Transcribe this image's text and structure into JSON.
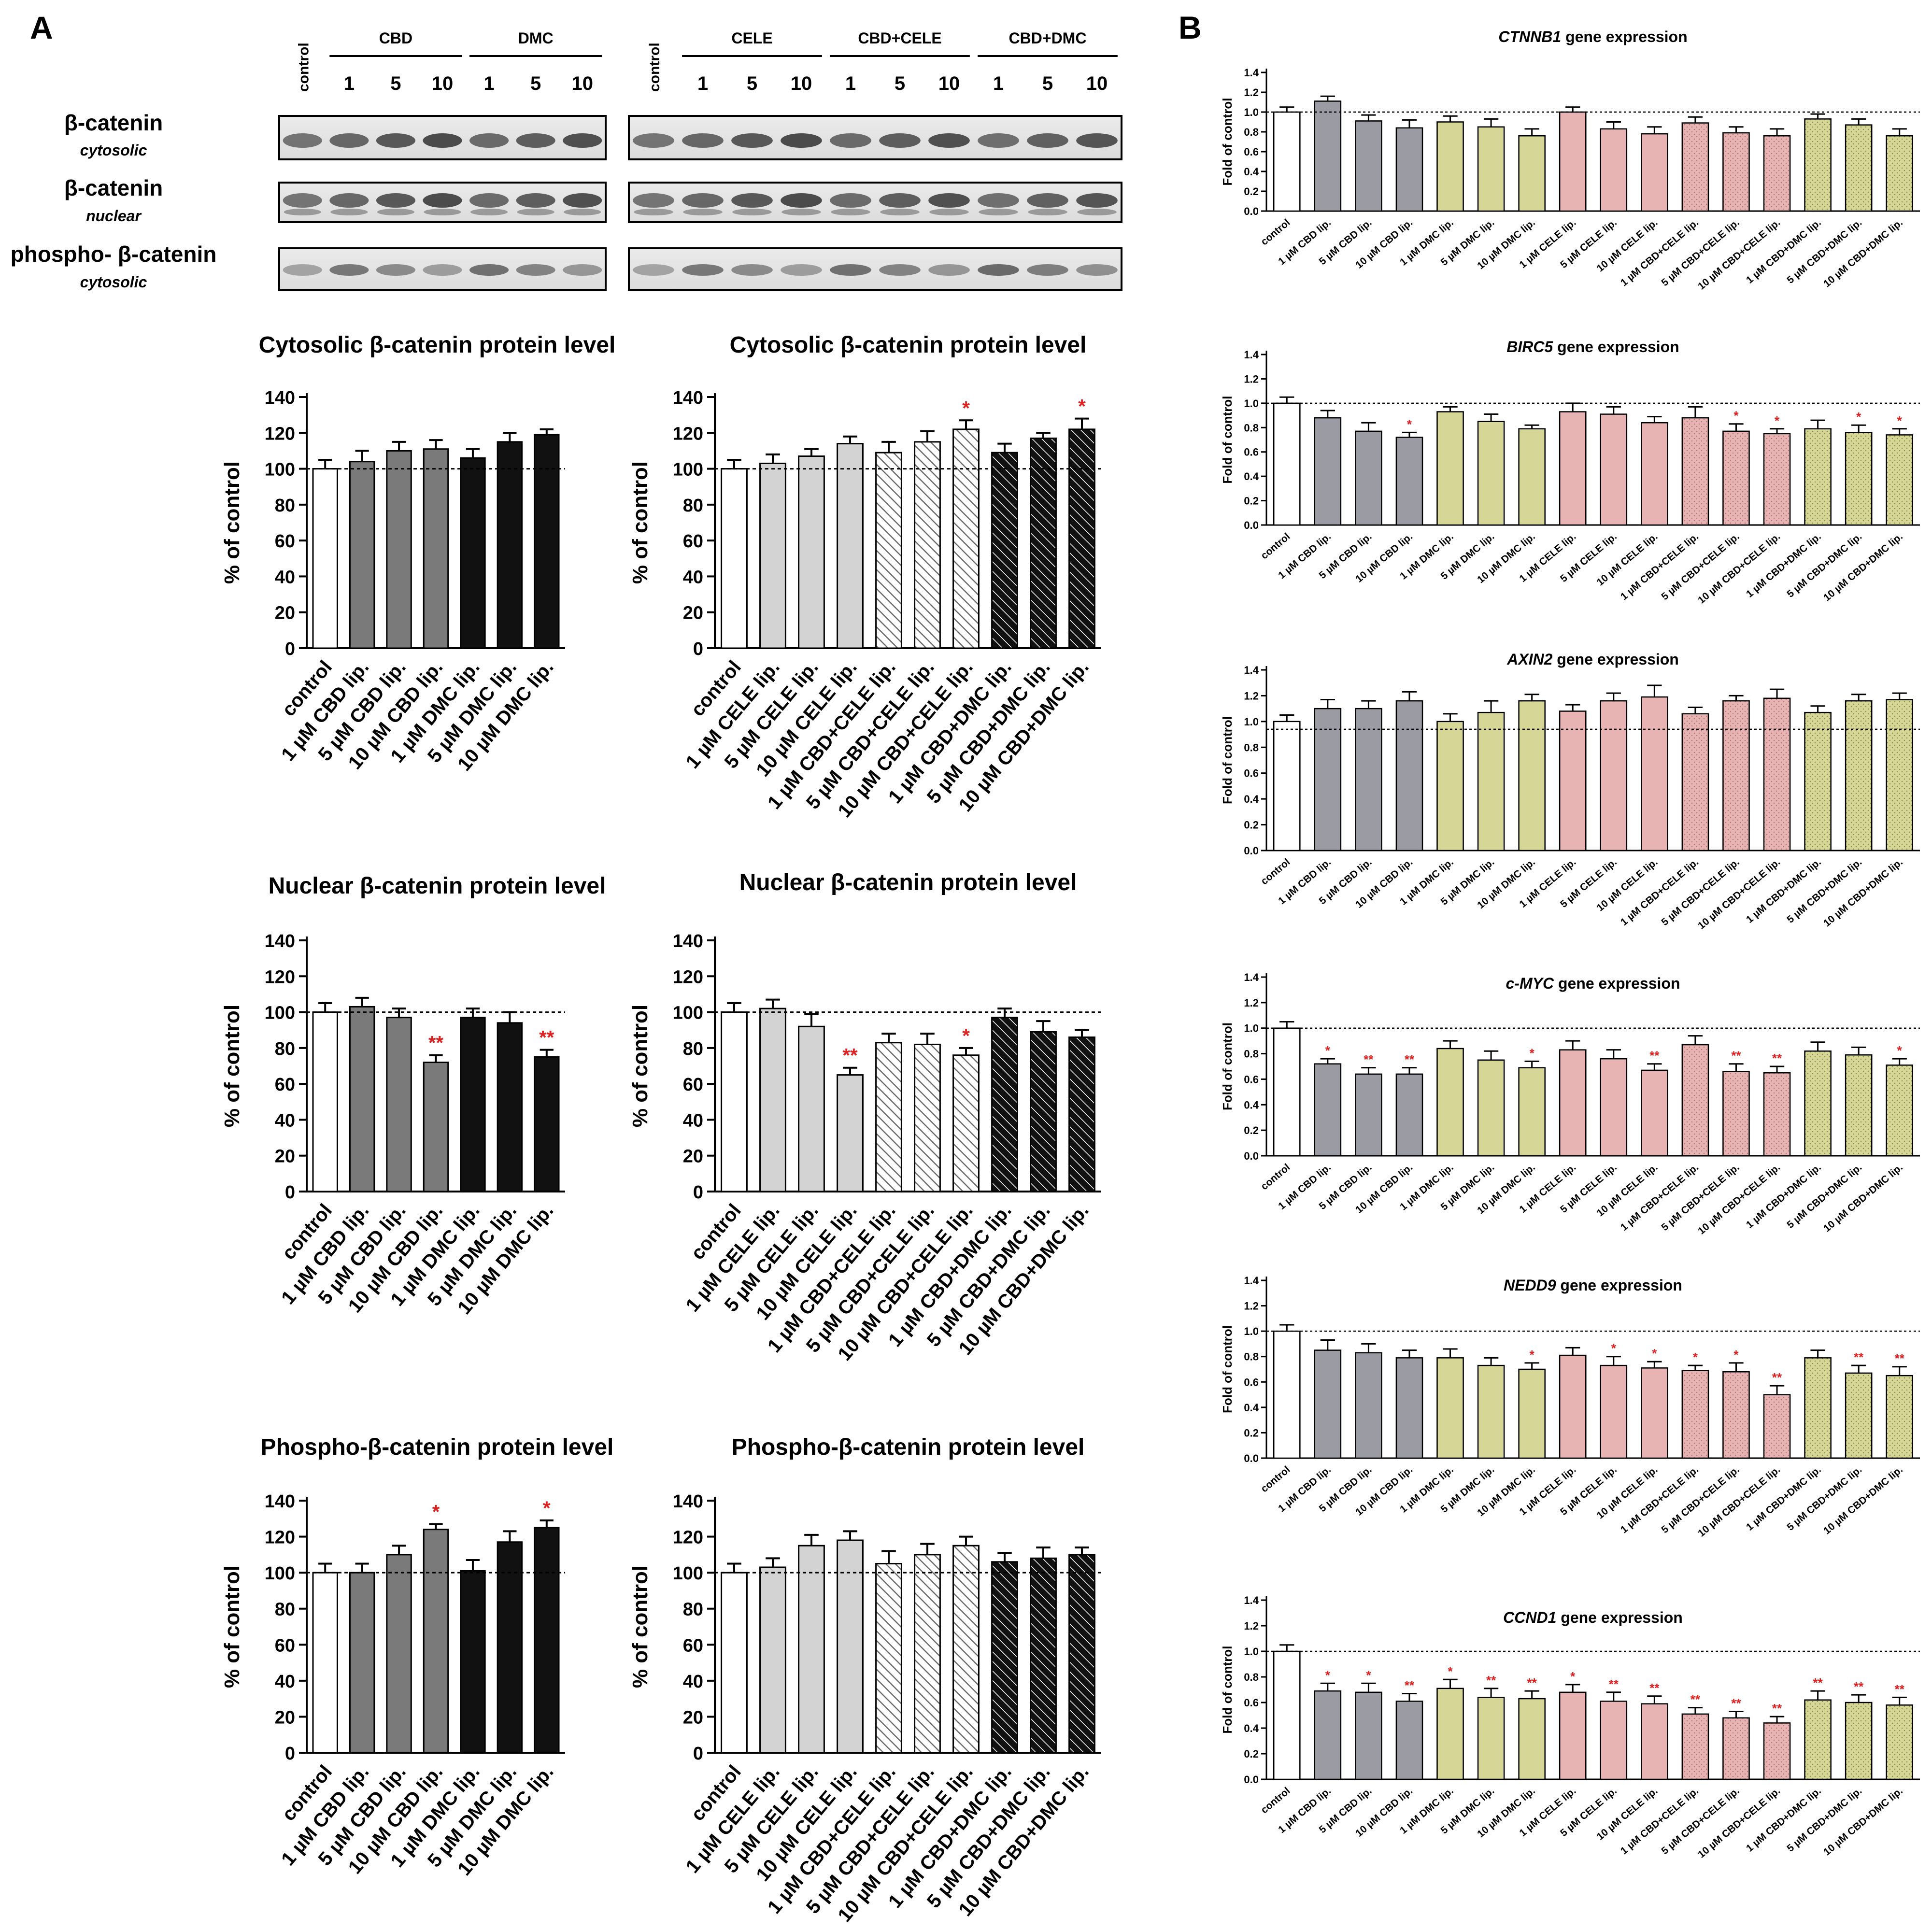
{
  "panels": {
    "a": "A",
    "b": "B"
  },
  "blot": {
    "left_block": {
      "control": "control",
      "groups": [
        {
          "label": "CBD",
          "doses": [
            "1",
            "5",
            "10"
          ]
        },
        {
          "label": "DMC",
          "doses": [
            "1",
            "5",
            "10"
          ]
        }
      ]
    },
    "right_block": {
      "control": "control",
      "groups": [
        {
          "label": "CELE",
          "doses": [
            "1",
            "5",
            "10"
          ]
        },
        {
          "label": "CBD+CELE",
          "doses": [
            "1",
            "5",
            "10"
          ]
        },
        {
          "label": "CBD+DMC",
          "doses": [
            "1",
            "5",
            "10"
          ]
        }
      ]
    },
    "rows": [
      {
        "name": "β-catenin",
        "sub": "cytosolic"
      },
      {
        "name": "β-catenin",
        "sub": "nuclear"
      },
      {
        "name": "phospho- β-catenin",
        "sub": "cytosolic"
      }
    ]
  },
  "colors": {
    "white": "#ffffff",
    "dark_gray": "#7a7a7a",
    "black": "#111111",
    "light_gray": "#d3d3d3",
    "gene_gray": "#9b9ba3",
    "gene_olive": "#d6d697",
    "gene_pink": "#e8b3b3",
    "star_red": "#e02020"
  },
  "chart_data": [
    {
      "type": "bar",
      "title": "Cytosolic β-catenin protein level",
      "ylabel": "% of control",
      "ylim": [
        0,
        140
      ],
      "yticks": [
        "0",
        "20",
        "40",
        "60",
        "80",
        "100",
        "120",
        "140"
      ],
      "reference_line": 100,
      "categories": [
        "control",
        "1 µM CBD lip.",
        "5 µM CBD lip.",
        "10 µM CBD lip.",
        "1 µM DMC lip.",
        "5 µM DMC lip.",
        "10 µM DMC lip."
      ],
      "values": [
        100,
        104,
        110,
        111,
        106,
        115,
        119
      ],
      "errors": [
        5,
        6,
        5,
        5,
        5,
        5,
        3
      ],
      "significance": [
        "",
        "",
        "",
        "",
        "",
        "",
        ""
      ],
      "fills": [
        "white",
        "dark_gray",
        "dark_gray",
        "dark_gray",
        "black",
        "black",
        "black"
      ]
    },
    {
      "type": "bar",
      "title": "Cytosolic β-catenin protein level",
      "ylabel": "% of control",
      "ylim": [
        0,
        140
      ],
      "yticks": [
        "0",
        "20",
        "40",
        "60",
        "80",
        "100",
        "120",
        "140"
      ],
      "reference_line": 100,
      "categories": [
        "control",
        "1 µM CELE lip.",
        "5 µM CELE lip.",
        "10 µM CELE lip.",
        "1 µM CBD+CELE lip.",
        "5 µM CBD+CELE lip.",
        "10 µM CBD+CELE lip.",
        "1 µM CBD+DMC lip.",
        "5 µM CBD+DMC lip.",
        "10 µM CBD+DMC lip."
      ],
      "values": [
        100,
        103,
        107,
        114,
        109,
        115,
        122,
        109,
        117,
        122
      ],
      "errors": [
        5,
        5,
        4,
        4,
        6,
        6,
        5,
        5,
        3,
        6
      ],
      "significance": [
        "",
        "",
        "",
        "",
        "",
        "",
        "*",
        "",
        "",
        "*"
      ],
      "fills": [
        "white",
        "light_gray",
        "light_gray",
        "light_gray",
        "hatch_light",
        "hatch_light",
        "hatch_light",
        "hatch_dark",
        "hatch_dark",
        "hatch_dark"
      ]
    },
    {
      "type": "bar",
      "title": "Nuclear β-catenin protein level",
      "ylabel": "% of control",
      "ylim": [
        0,
        140
      ],
      "yticks": [
        "0",
        "20",
        "40",
        "60",
        "80",
        "100",
        "120",
        "140"
      ],
      "reference_line": 100,
      "categories": [
        "control",
        "1 µM CBD lip.",
        "5 µM CBD lip.",
        "10 µM CBD lip.",
        "1 µM DMC lip.",
        "5 µM DMC lip.",
        "10 µM DMC lip."
      ],
      "values": [
        100,
        103,
        97,
        72,
        97,
        94,
        75
      ],
      "errors": [
        5,
        5,
        5,
        4,
        5,
        6,
        4
      ],
      "significance": [
        "",
        "",
        "",
        "**",
        "",
        "",
        "**"
      ],
      "fills": [
        "white",
        "dark_gray",
        "dark_gray",
        "dark_gray",
        "black",
        "black",
        "black"
      ]
    },
    {
      "type": "bar",
      "title": "Nuclear β-catenin protein level",
      "ylabel": "% of control",
      "ylim": [
        0,
        140
      ],
      "yticks": [
        "0",
        "20",
        "40",
        "60",
        "80",
        "100",
        "120",
        "140"
      ],
      "reference_line": 100,
      "categories": [
        "control",
        "1 µM CELE lip.",
        "5 µM CELE lip.",
        "10 µM CELE lip.",
        "1 µM CBD+CELE lip.",
        "5 µM CBD+CELE lip.",
        "10 µM CBD+CELE lip.",
        "1 µM CBD+DMC lip.",
        "5 µM CBD+DMC lip.",
        "10 µM CBD+DMC lip."
      ],
      "values": [
        100,
        102,
        92,
        65,
        83,
        82,
        76,
        97,
        89,
        86
      ],
      "errors": [
        5,
        5,
        7,
        4,
        5,
        6,
        4,
        5,
        6,
        4
      ],
      "significance": [
        "",
        "",
        "",
        "**",
        "",
        "",
        "*",
        "",
        "",
        ""
      ],
      "fills": [
        "white",
        "light_gray",
        "light_gray",
        "light_gray",
        "hatch_light",
        "hatch_light",
        "hatch_light",
        "hatch_dark",
        "hatch_dark",
        "hatch_dark"
      ]
    },
    {
      "type": "bar",
      "title": "Phospho-β-catenin protein level",
      "ylabel": "% of control",
      "ylim": [
        0,
        140
      ],
      "yticks": [
        "0",
        "20",
        "40",
        "60",
        "80",
        "100",
        "120",
        "140"
      ],
      "reference_line": 100,
      "categories": [
        "control",
        "1 µM CBD lip.",
        "5 µM CBD lip.",
        "10 µM CBD lip.",
        "1 µM DMC lip.",
        "5 µM DMC lip.",
        "10 µM DMC lip."
      ],
      "values": [
        100,
        100,
        110,
        124,
        101,
        117,
        125
      ],
      "errors": [
        5,
        5,
        5,
        3,
        6,
        6,
        4
      ],
      "significance": [
        "",
        "",
        "",
        "*",
        "",
        "",
        "*"
      ],
      "fills": [
        "white",
        "dark_gray",
        "dark_gray",
        "dark_gray",
        "black",
        "black",
        "black"
      ]
    },
    {
      "type": "bar",
      "title": "Phospho-β-catenin protein level",
      "ylabel": "% of control",
      "ylim": [
        0,
        140
      ],
      "yticks": [
        "0",
        "20",
        "40",
        "60",
        "80",
        "100",
        "120",
        "140"
      ],
      "reference_line": 100,
      "categories": [
        "control",
        "1 µM CELE lip.",
        "5 µM CELE lip.",
        "10 µM CELE lip.",
        "1 µM CBD+CELE lip.",
        "5 µM CBD+CELE lip.",
        "10 µM CBD+CELE lip.",
        "1 µM CBD+DMC lip.",
        "5 µM CBD+DMC lip.",
        "10 µM CBD+DMC lip."
      ],
      "values": [
        100,
        103,
        115,
        118,
        105,
        110,
        115,
        106,
        108,
        110
      ],
      "errors": [
        5,
        5,
        6,
        5,
        7,
        6,
        5,
        5,
        6,
        4
      ],
      "significance": [
        "",
        "",
        "",
        "",
        "",
        "",
        "",
        "",
        "",
        ""
      ],
      "fills": [
        "white",
        "light_gray",
        "light_gray",
        "light_gray",
        "hatch_light",
        "hatch_light",
        "hatch_light",
        "hatch_dark",
        "hatch_dark",
        "hatch_dark"
      ]
    },
    {
      "type": "bar",
      "title_italic": "CTNNB1",
      "title_rest": " gene expression",
      "ylabel": "Fold of control",
      "ylim": [
        0,
        1.4
      ],
      "yticks": [
        "0.0",
        "0.2",
        "0.4",
        "0.6",
        "0.8",
        "1.0",
        "1.2",
        "1.4"
      ],
      "reference_line": 1.0,
      "categories": [
        "control",
        "1 µM CBD lip.",
        "5 µM CBD lip.",
        "10 µM CBD lip.",
        "1 µM DMC lip.",
        "5 µM DMC lip.",
        "10 µM DMC lip.",
        "1 µM CELE lip.",
        "5 µM CELE lip.",
        "10 µM CELE lip.",
        "1 µM CBD+CELE lip.",
        "5 µM CBD+CELE lip.",
        "10 µM CBD+CELE lip.",
        "1 µM CBD+DMC lip.",
        "5 µM CBD+DMC lip.",
        "10 µM CBD+DMC lip."
      ],
      "values": [
        1.0,
        1.11,
        0.91,
        0.84,
        0.9,
        0.85,
        0.76,
        1.0,
        0.83,
        0.78,
        0.89,
        0.79,
        0.76,
        0.93,
        0.87,
        0.76
      ],
      "errors": [
        0.05,
        0.05,
        0.06,
        0.08,
        0.06,
        0.08,
        0.07,
        0.05,
        0.07,
        0.07,
        0.06,
        0.06,
        0.07,
        0.05,
        0.06,
        0.07
      ],
      "significance": [
        "",
        "",
        "",
        "",
        "",
        "",
        "",
        "",
        "",
        "",
        "",
        "",
        "",
        "",
        "",
        ""
      ]
    },
    {
      "type": "bar",
      "title_italic": "BIRC5",
      "title_rest": " gene expression",
      "ylabel": "Fold of control",
      "ylim": [
        0,
        1.4
      ],
      "yticks": [
        "0.0",
        "0.2",
        "0.4",
        "0.6",
        "0.8",
        "1.0",
        "1.2",
        "1.4"
      ],
      "reference_line": 1.0,
      "categories": [
        "control",
        "1 µM CBD lip.",
        "5 µM CBD lip.",
        "10 µM CBD lip.",
        "1 µM DMC lip.",
        "5 µM DMC lip.",
        "10 µM DMC lip.",
        "1 µM CELE lip.",
        "5 µM CELE lip.",
        "10 µM CELE lip.",
        "1 µM CBD+CELE lip.",
        "5 µM CBD+CELE lip.",
        "10 µM CBD+CELE lip.",
        "1 µM CBD+DMC lip.",
        "5 µM CBD+DMC lip.",
        "10 µM CBD+DMC lip."
      ],
      "values": [
        1.0,
        0.88,
        0.77,
        0.72,
        0.93,
        0.85,
        0.79,
        0.93,
        0.91,
        0.84,
        0.88,
        0.77,
        0.75,
        0.79,
        0.76,
        0.74
      ],
      "errors": [
        0.05,
        0.06,
        0.07,
        0.04,
        0.04,
        0.06,
        0.03,
        0.07,
        0.06,
        0.05,
        0.09,
        0.06,
        0.04,
        0.07,
        0.06,
        0.05
      ],
      "significance": [
        "",
        "",
        "",
        "*",
        "",
        "",
        "",
        "",
        "",
        "",
        "",
        "*",
        "*",
        "",
        "*",
        "*"
      ]
    },
    {
      "type": "bar",
      "title_italic": "AXIN2",
      "title_rest": " gene expression",
      "ylabel": "Fold of control",
      "ylim": [
        0,
        1.4
      ],
      "yticks": [
        "0.0",
        "0.2",
        "0.4",
        "0.6",
        "0.8",
        "1.0",
        "1.2",
        "1.4"
      ],
      "reference_line": 0.94,
      "categories": [
        "control",
        "1 µM CBD lip.",
        "5 µM CBD lip.",
        "10 µM CBD lip.",
        "1 µM DMC lip.",
        "5 µM DMC lip.",
        "10 µM DMC lip.",
        "1 µM CELE lip.",
        "5 µM CELE lip.",
        "10 µM CELE lip.",
        "1 µM CBD+CELE lip.",
        "5 µM CBD+CELE lip.",
        "10 µM CBD+CELE lip.",
        "1 µM CBD+DMC lip.",
        "5 µM CBD+DMC lip.",
        "10 µM CBD+DMC lip."
      ],
      "values": [
        1.0,
        1.1,
        1.1,
        1.16,
        1.0,
        1.07,
        1.16,
        1.08,
        1.16,
        1.19,
        1.06,
        1.16,
        1.18,
        1.07,
        1.16,
        1.17
      ],
      "errors": [
        0.05,
        0.07,
        0.06,
        0.07,
        0.06,
        0.09,
        0.05,
        0.05,
        0.06,
        0.09,
        0.05,
        0.04,
        0.07,
        0.05,
        0.05,
        0.05
      ],
      "significance": [
        "",
        "",
        "",
        "",
        "",
        "",
        "",
        "",
        "",
        "",
        "",
        "",
        "",
        "",
        "",
        ""
      ]
    },
    {
      "type": "bar",
      "title_italic": "c-MYC",
      "title_rest": " gene expression",
      "ylabel": "Fold of control",
      "ylim": [
        0,
        1.4
      ],
      "yticks": [
        "0.0",
        "0.2",
        "0.4",
        "0.6",
        "0.8",
        "1.0",
        "1.2",
        "1.4"
      ],
      "reference_line": 1.0,
      "categories": [
        "control",
        "1 µM CBD lip.",
        "5 µM CBD lip.",
        "10 µM CBD lip.",
        "1 µM DMC lip.",
        "5 µM DMC lip.",
        "10 µM DMC lip.",
        "1 µM CELE lip.",
        "5 µM CELE lip.",
        "10 µM CELE lip.",
        "1 µM CBD+CELE lip.",
        "5 µM CBD+CELE lip.",
        "10 µM CBD+CELE lip.",
        "1 µM CBD+DMC lip.",
        "5 µM CBD+DMC lip.",
        "10 µM CBD+DMC lip."
      ],
      "values": [
        1.0,
        0.72,
        0.64,
        0.64,
        0.84,
        0.75,
        0.69,
        0.83,
        0.76,
        0.67,
        0.87,
        0.66,
        0.65,
        0.82,
        0.79,
        0.71
      ],
      "errors": [
        0.05,
        0.04,
        0.05,
        0.05,
        0.06,
        0.07,
        0.05,
        0.07,
        0.07,
        0.05,
        0.07,
        0.06,
        0.05,
        0.07,
        0.06,
        0.05
      ],
      "significance": [
        "",
        "*",
        "**",
        "**",
        "",
        "",
        "*",
        "",
        "",
        "**",
        "",
        "**",
        "**",
        "",
        "",
        "*"
      ]
    },
    {
      "type": "bar",
      "title_italic": "NEDD9",
      "title_rest": " gene expression",
      "ylabel": "Fold of control",
      "ylim": [
        0,
        1.4
      ],
      "yticks": [
        "0.0",
        "0.2",
        "0.4",
        "0.6",
        "0.8",
        "1.0",
        "1.2",
        "1.4"
      ],
      "reference_line": 1.0,
      "categories": [
        "control",
        "1 µM CBD lip.",
        "5 µM CBD lip.",
        "10 µM CBD lip.",
        "1 µM DMC lip.",
        "5 µM DMC lip.",
        "10 µM DMC lip.",
        "1 µM CELE lip.",
        "5 µM CELE lip.",
        "10 µM CELE lip.",
        "1 µM CBD+CELE lip.",
        "5 µM CBD+CELE lip.",
        "10 µM CBD+CELE lip.",
        "1 µM CBD+DMC lip.",
        "5 µM CBD+DMC lip.",
        "10 µM CBD+DMC lip."
      ],
      "values": [
        1.0,
        0.85,
        0.83,
        0.79,
        0.79,
        0.73,
        0.7,
        0.81,
        0.73,
        0.71,
        0.69,
        0.68,
        0.5,
        0.79,
        0.67,
        0.65
      ],
      "errors": [
        0.05,
        0.08,
        0.07,
        0.06,
        0.07,
        0.06,
        0.05,
        0.06,
        0.07,
        0.05,
        0.04,
        0.07,
        0.07,
        0.06,
        0.06,
        0.07
      ],
      "significance": [
        "",
        "",
        "",
        "",
        "",
        "",
        "*",
        "",
        "*",
        "*",
        "*",
        "*",
        "**",
        "",
        "**",
        "**"
      ]
    },
    {
      "type": "bar",
      "title_italic": "CCND1",
      "title_rest": " gene expression",
      "ylabel": "Fold of control",
      "ylim": [
        0,
        1.4
      ],
      "yticks": [
        "0.0",
        "0.2",
        "0.4",
        "0.6",
        "0.8",
        "1.0",
        "1.2",
        "1.4"
      ],
      "reference_line": 1.0,
      "categories": [
        "control",
        "1 µM CBD lip.",
        "5 µM CBD lip.",
        "10 µM CBD lip.",
        "1 µM DMC lip.",
        "5 µM DMC lip.",
        "10 µM DMC lip.",
        "1 µM CELE lip.",
        "5 µM CELE lip.",
        "10 µM CELE lip.",
        "1 µM CBD+CELE lip.",
        "5 µM CBD+CELE lip.",
        "10 µM CBD+CELE lip.",
        "1 µM CBD+DMC lip.",
        "5 µM CBD+DMC lip.",
        "10 µM CBD+DMC lip."
      ],
      "values": [
        1.0,
        0.69,
        0.68,
        0.61,
        0.71,
        0.64,
        0.63,
        0.68,
        0.61,
        0.59,
        0.51,
        0.48,
        0.44,
        0.62,
        0.6,
        0.58
      ],
      "errors": [
        0.05,
        0.06,
        0.07,
        0.06,
        0.07,
        0.07,
        0.06,
        0.06,
        0.07,
        0.06,
        0.05,
        0.05,
        0.05,
        0.07,
        0.06,
        0.06
      ],
      "significance": [
        "",
        "*",
        "*",
        "**",
        "*",
        "**",
        "**",
        "*",
        "**",
        "**",
        "**",
        "**",
        "**",
        "**",
        "**",
        "**"
      ]
    }
  ]
}
